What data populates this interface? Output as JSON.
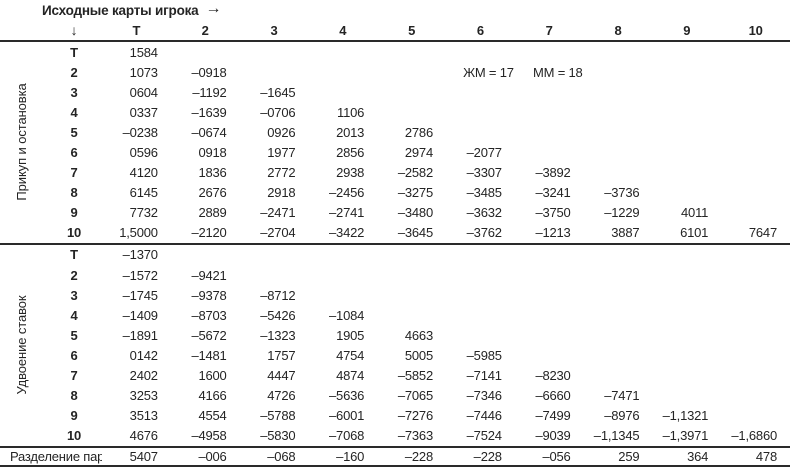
{
  "header": {
    "title": "Исходные карты игрока",
    "right_arrow": "→",
    "down_arrow": "↓",
    "columns": [
      "Т",
      "2",
      "3",
      "4",
      "5",
      "6",
      "7",
      "8",
      "9",
      "10"
    ]
  },
  "sections": [
    {
      "label": "Прикуп и остановка",
      "rows": [
        {
          "label": "Т",
          "cells": [
            "1584",
            "",
            "",
            "",
            "",
            "",
            "",
            "",
            "",
            ""
          ]
        },
        {
          "label": "2",
          "cells": [
            "1073",
            "–0918",
            "",
            "",
            "",
            "",
            "",
            "",
            "",
            ""
          ],
          "annotations": [
            {
              "col": 5,
              "text": "ЖМ = 17"
            },
            {
              "col": 6,
              "text": "ММ = 18"
            }
          ]
        },
        {
          "label": "3",
          "cells": [
            "0604",
            "–1192",
            "–1645",
            "",
            "",
            "",
            "",
            "",
            "",
            ""
          ]
        },
        {
          "label": "4",
          "cells": [
            "0337",
            "–1639",
            "–0706",
            "1106",
            "",
            "",
            "",
            "",
            "",
            ""
          ]
        },
        {
          "label": "5",
          "cells": [
            "–0238",
            "–0674",
            "0926",
            "2013",
            "2786",
            "",
            "",
            "",
            "",
            ""
          ]
        },
        {
          "label": "6",
          "cells": [
            "0596",
            "0918",
            "1977",
            "2856",
            "2974",
            "–2077",
            "",
            "",
            "",
            ""
          ]
        },
        {
          "label": "7",
          "cells": [
            "4120",
            "1836",
            "2772",
            "2938",
            "–2582",
            "–3307",
            "–3892",
            "",
            "",
            ""
          ]
        },
        {
          "label": "8",
          "cells": [
            "6145",
            "2676",
            "2918",
            "–2456",
            "–3275",
            "–3485",
            "–3241",
            "–3736",
            "",
            ""
          ]
        },
        {
          "label": "9",
          "cells": [
            "7732",
            "2889",
            "–2471",
            "–2741",
            "–3480",
            "–3632",
            "–3750",
            "–1229",
            "4011",
            ""
          ]
        },
        {
          "label": "10",
          "cells": [
            "1,5000",
            "–2120",
            "–2704",
            "–3422",
            "–3645",
            "–3762",
            "–1213",
            "3887",
            "6101",
            "7647"
          ]
        }
      ]
    },
    {
      "label": "Удвоение ставок",
      "rows": [
        {
          "label": "Т",
          "cells": [
            "–1370",
            "",
            "",
            "",
            "",
            "",
            "",
            "",
            "",
            ""
          ]
        },
        {
          "label": "2",
          "cells": [
            "–1572",
            "–9421",
            "",
            "",
            "",
            "",
            "",
            "",
            "",
            ""
          ]
        },
        {
          "label": "3",
          "cells": [
            "–1745",
            "–9378",
            "–8712",
            "",
            "",
            "",
            "",
            "",
            "",
            ""
          ]
        },
        {
          "label": "4",
          "cells": [
            "–1409",
            "–8703",
            "–5426",
            "–1084",
            "",
            "",
            "",
            "",
            "",
            ""
          ]
        },
        {
          "label": "5",
          "cells": [
            "–1891",
            "–5672",
            "–1323",
            "1905",
            "4663",
            "",
            "",
            "",
            "",
            ""
          ]
        },
        {
          "label": "6",
          "cells": [
            "0142",
            "–1481",
            "1757",
            "4754",
            "5005",
            "–5985",
            "",
            "",
            "",
            ""
          ]
        },
        {
          "label": "7",
          "cells": [
            "2402",
            "1600",
            "4447",
            "4874",
            "–5852",
            "–7141",
            "–8230",
            "",
            "",
            ""
          ]
        },
        {
          "label": "8",
          "cells": [
            "3253",
            "4166",
            "4726",
            "–5636",
            "–7065",
            "–7346",
            "–6660",
            "–7471",
            "",
            ""
          ]
        },
        {
          "label": "9",
          "cells": [
            "3513",
            "4554",
            "–5788",
            "–6001",
            "–7276",
            "–7446",
            "–7499",
            "–8976",
            "–1,1321",
            ""
          ]
        },
        {
          "label": "10",
          "cells": [
            "4676",
            "–4958",
            "–5830",
            "–7068",
            "–7363",
            "–7524",
            "–9039",
            "–1,1345",
            "–1,3971",
            "–1,6860"
          ]
        }
      ]
    }
  ],
  "footer_row": {
    "label": "Разделение пар",
    "cells": [
      "5407",
      "–006",
      "–068",
      "–160",
      "–228",
      "–228",
      "–056",
      "259",
      "364",
      "478"
    ]
  },
  "colors": {
    "text": "#242424",
    "rule": "#2a2a2a",
    "background": "#ffffff"
  }
}
